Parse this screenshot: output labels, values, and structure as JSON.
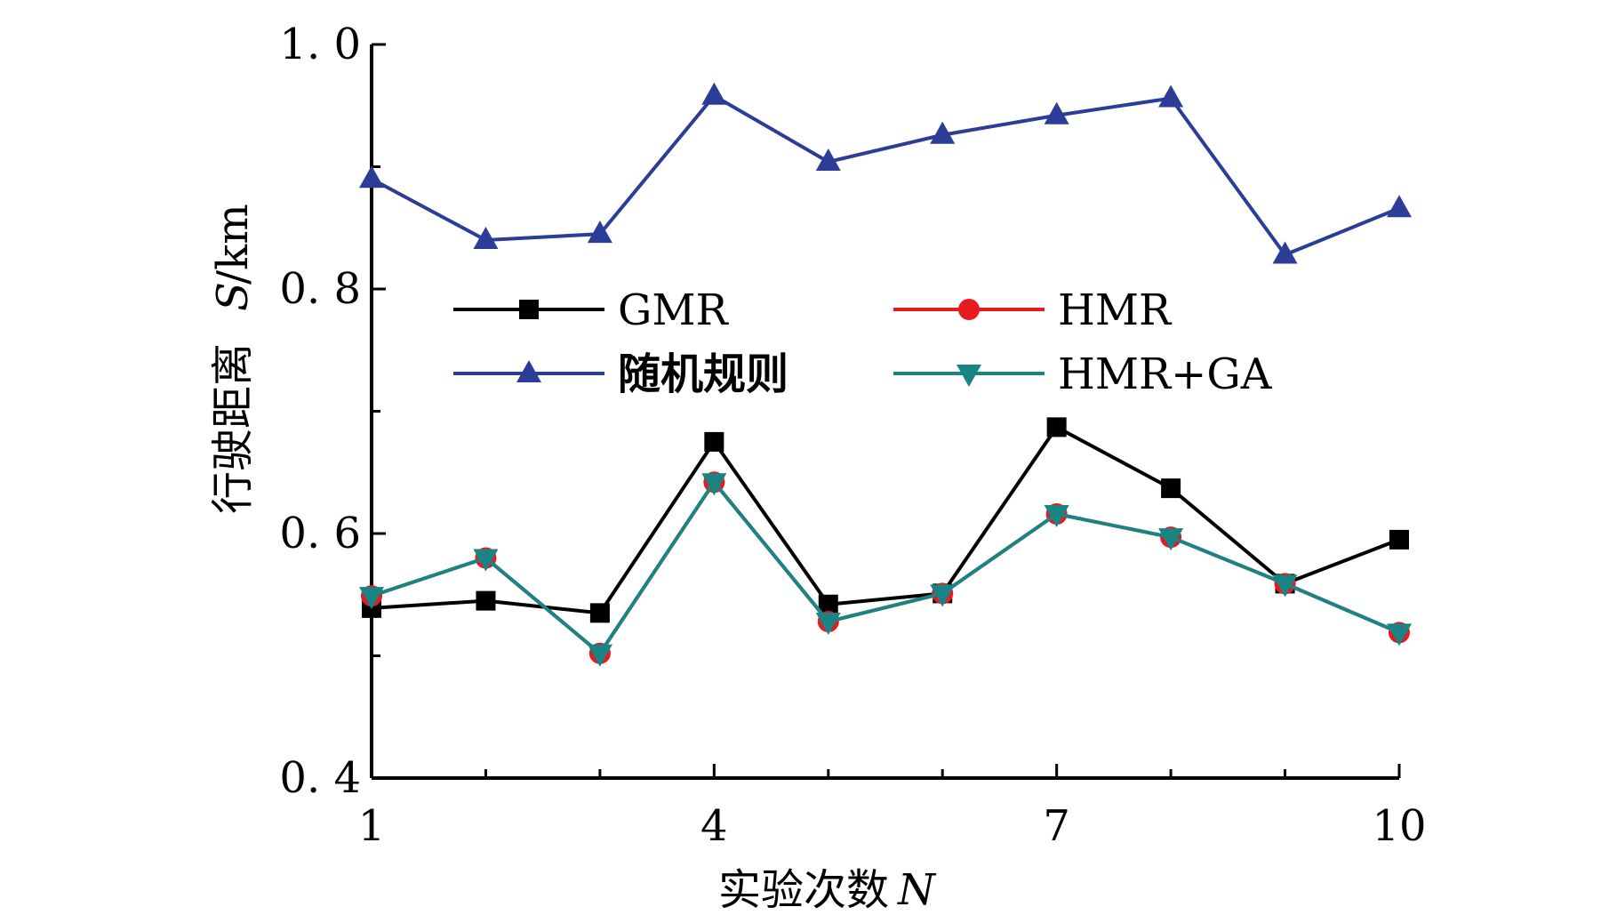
{
  "chart_data": {
    "type": "line",
    "x": [
      1,
      2,
      3,
      4,
      5,
      6,
      7,
      8,
      9,
      10
    ],
    "xlabel_text": "实验次数",
    "xlabel_var": "N",
    "ylabel_text": "行驶距离",
    "ylabel_var": "S",
    "ylabel_unit": "/km",
    "xlim": [
      1,
      10
    ],
    "ylim": [
      0.4,
      1.0
    ],
    "x_ticks": [
      1,
      4,
      7,
      10
    ],
    "x_tick_labels": [
      "1",
      "4",
      "7",
      "10"
    ],
    "y_ticks": [
      0.4,
      0.6,
      0.8,
      1.0
    ],
    "y_tick_labels": [
      "0. 4",
      "0. 6",
      "0. 8",
      "1. 0"
    ],
    "grid": false,
    "legend_position": "center-left",
    "series": [
      {
        "name": "GMR",
        "marker": "square",
        "color": "#000000",
        "values": [
          0.539,
          0.545,
          0.535,
          0.675,
          0.542,
          0.551,
          0.687,
          0.637,
          0.559,
          0.595
        ]
      },
      {
        "name": "HMR",
        "marker": "circle",
        "color": "#e8191f",
        "values": [
          0.549,
          0.58,
          0.502,
          0.642,
          0.528,
          0.551,
          0.616,
          0.597,
          0.559,
          0.519
        ]
      },
      {
        "name": "随机规则",
        "marker": "triangle-up",
        "color": "#2b3d97",
        "values": [
          0.89,
          0.84,
          0.845,
          0.958,
          0.904,
          0.926,
          0.942,
          0.956,
          0.828,
          0.866
        ]
      },
      {
        "name": "HMR+GA",
        "marker": "triangle-down",
        "color": "#1a8383",
        "values": [
          0.549,
          0.58,
          0.502,
          0.642,
          0.528,
          0.551,
          0.616,
          0.597,
          0.559,
          0.519
        ]
      }
    ]
  }
}
